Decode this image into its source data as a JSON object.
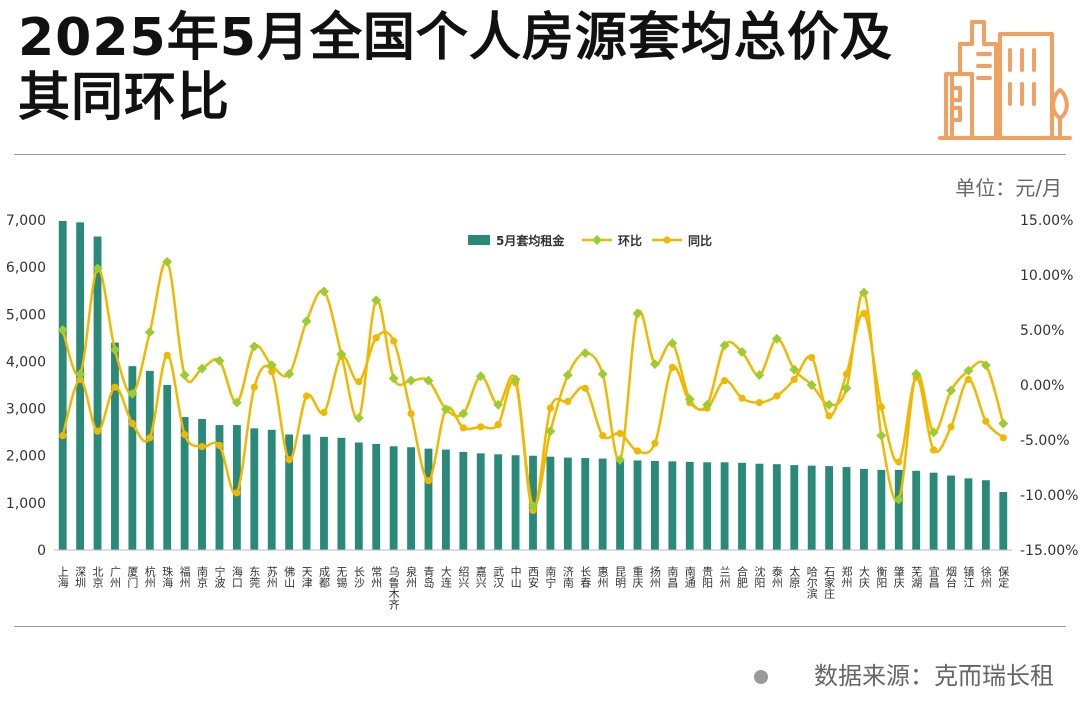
{
  "title": "2025年5月全国个人房源套均总价及其同环比",
  "unit": "单位：元/月",
  "source": "数据来源：克而瑞长租",
  "icon": "building-icon",
  "colors": {
    "bar": "#2a8a7a",
    "mom": "#9acd32",
    "yoy": "#f0b800",
    "icon": "#f0a060"
  },
  "chart_data": {
    "type": "bar",
    "categories": [
      "上海",
      "深圳",
      "北京",
      "广州",
      "厦门",
      "杭州",
      "珠海",
      "福州",
      "南京",
      "宁波",
      "海口",
      "东莞",
      "苏州",
      "佛山",
      "天津",
      "成都",
      "无锡",
      "长沙",
      "常州",
      "乌鲁木齐",
      "泉州",
      "青岛",
      "大连",
      "绍兴",
      "嘉兴",
      "武汉",
      "中山",
      "西安",
      "南宁",
      "济南",
      "长春",
      "惠州",
      "昆明",
      "重庆",
      "扬州",
      "南昌",
      "南通",
      "贵阳",
      "兰州",
      "合肥",
      "沈阳",
      "泰州",
      "太原",
      "哈尔滨",
      "石家庄",
      "郑州",
      "大庆",
      "衡阳",
      "肇庆",
      "芜湖",
      "宜昌",
      "烟台",
      "镇江",
      "徐州",
      "保定"
    ],
    "series": [
      {
        "name": "5月套均租金",
        "axis": "left",
        "values": [
          6980,
          6950,
          6650,
          4400,
          3900,
          3800,
          3500,
          2820,
          2780,
          2650,
          2650,
          2580,
          2550,
          2450,
          2450,
          2400,
          2380,
          2280,
          2250,
          2200,
          2180,
          2150,
          2130,
          2080,
          2050,
          2030,
          2010,
          2000,
          1980,
          1960,
          1950,
          1940,
          1920,
          1900,
          1890,
          1880,
          1870,
          1860,
          1860,
          1850,
          1830,
          1820,
          1800,
          1790,
          1780,
          1760,
          1720,
          1700,
          1700,
          1680,
          1640,
          1580,
          1520,
          1480,
          1230
        ]
      },
      {
        "name": "环比",
        "axis": "right",
        "values": [
          5.0,
          1.0,
          10.6,
          3.2,
          -0.8,
          4.8,
          11.2,
          0.9,
          1.5,
          2.2,
          -1.6,
          3.5,
          1.8,
          1.0,
          5.8,
          8.5,
          2.8,
          -3.0,
          7.7,
          0.6,
          0.4,
          0.4,
          -2.2,
          -2.6,
          0.8,
          -1.8,
          0.5,
          -11.0,
          -4.2,
          0.9,
          2.9,
          1.0,
          -6.8,
          6.5,
          1.9,
          3.8,
          -1.3,
          -1.8,
          3.6,
          3.0,
          0.9,
          4.2,
          1.4,
          0.0,
          -1.8,
          -0.3,
          8.4,
          -4.6,
          -10.4,
          1.0,
          -4.3,
          -0.5,
          1.3,
          1.8,
          -3.5
        ]
      },
      {
        "name": "同比",
        "axis": "right",
        "values": [
          -4.6,
          0.5,
          -4.2,
          -0.2,
          -3.5,
          -4.8,
          2.7,
          -4.5,
          -5.6,
          -5.5,
          -9.8,
          -0.2,
          1.2,
          -6.8,
          -1.0,
          -2.5,
          2.6,
          0.3,
          4.3,
          4.0,
          -2.6,
          -8.7,
          -2.2,
          -3.9,
          -3.8,
          -3.6,
          0.2,
          -11.4,
          -2.1,
          -1.5,
          -0.3,
          -4.6,
          -4.4,
          -6.0,
          -5.3,
          1.6,
          -1.6,
          -2.1,
          0.4,
          -1.2,
          -1.6,
          -1.0,
          0.5,
          2.5,
          -2.8,
          1.0,
          6.5,
          -2.0,
          -7.0,
          0.7,
          -5.9,
          -3.8,
          0.5,
          -3.3,
          -4.8
        ]
      }
    ],
    "y_left": {
      "min": 0,
      "max": 7000,
      "ticks": [
        "0",
        "1,000",
        "2,000",
        "3,000",
        "4,000",
        "5,000",
        "6,000",
        "7,000"
      ]
    },
    "y_right": {
      "min": -15,
      "max": 15,
      "ticks": [
        "-15.00%",
        "-10.00%",
        "-5.00%",
        "0.00%",
        "5.00%",
        "10.00%",
        "15.00%"
      ]
    },
    "legend": {
      "items": [
        "5月套均租金",
        "环比",
        "同比"
      ],
      "placement": "top"
    },
    "grid": false
  }
}
